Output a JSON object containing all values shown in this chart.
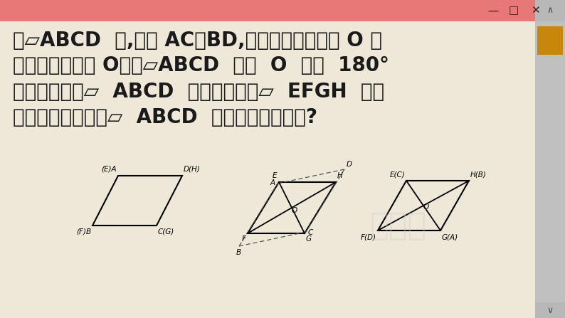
{
  "bg_color": "#ede8d8",
  "title_bar_color": "#e87878",
  "text_color": "#1a1a1a",
  "line1": "在▱ABCD  中,连结 AC、BD,它们的交点记为点 O 用",
  "line2": "一枚图钉穿过点 O，将▱ABCD  绕点  O  旋转  180°",
  "line3": "观察旋转后的▱  ABCD  和纸上所画的▱  EFGH  是否",
  "line4": "重合你能从中得出▱  ABCD  的一些边角关系吗?",
  "font_size_text": 20,
  "fig_width": 7.94,
  "fig_height": 4.47,
  "scrollbar_orange": "#c8860a",
  "scrollbar_gray": "#c0c0c0"
}
